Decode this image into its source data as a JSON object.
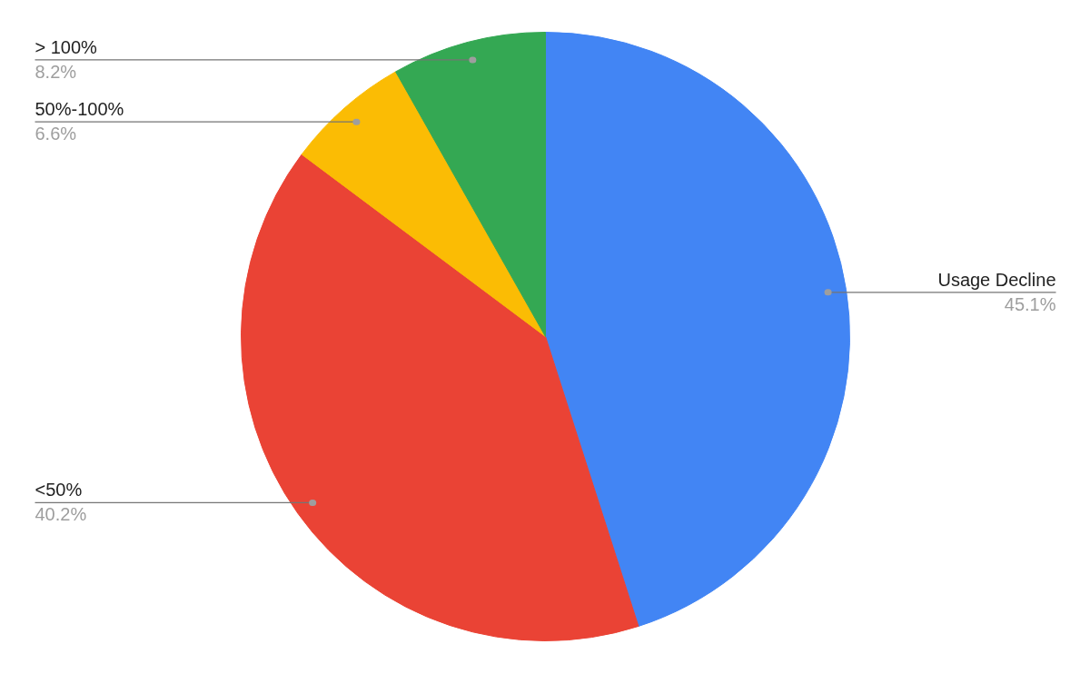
{
  "chart_data": {
    "type": "pie",
    "categories": [
      "Usage Decline",
      "<50%",
      "50%-100%",
      "> 100%"
    ],
    "values": [
      45.1,
      40.2,
      6.6,
      8.2
    ],
    "colors": [
      "#4285f4",
      "#ea4335",
      "#fbbc04",
      "#34a853"
    ],
    "value_labels": [
      "45.1%",
      "40.2%",
      "6.6%",
      "8.2%"
    ],
    "legend": false
  }
}
